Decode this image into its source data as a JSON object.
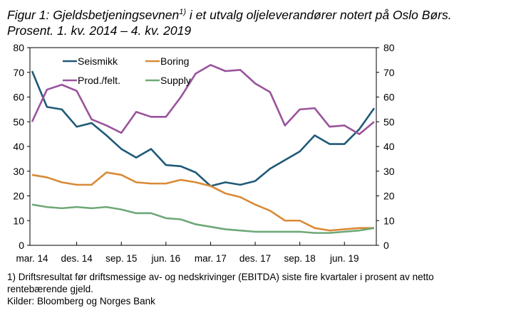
{
  "title_line1_pre": "Figur 1: Gjeldsbetjeningsevnen",
  "title_line1_sup": "1)",
  "title_line1_post": " i et utvalg oljeleverandører notert på Oslo Børs.",
  "title_line2": "Prosent. 1. kv. 2014 – 4. kv. 2019",
  "footnote1": "1) Driftsresultat før driftsmessige av- og nedskrivinger (EBITDA) siste fire kvartaler i prosent av netto",
  "footnote2": "rentebærende gjeld.",
  "source": "Kilder: Bloomberg og Norges Bank",
  "chart_data": {
    "type": "line",
    "x": [
      "1. kv. 2014",
      "2. kv. 2014",
      "3. kv. 2014",
      "4. kv. 2014",
      "1. kv. 2015",
      "2. kv. 2015",
      "3. kv. 2015",
      "4. kv. 2015",
      "1. kv. 2016",
      "2. kv. 2016",
      "3. kv. 2016",
      "4. kv. 2016",
      "1. kv. 2017",
      "2. kv. 2017",
      "3. kv. 2017",
      "4. kv. 2017",
      "1. kv. 2018",
      "2. kv. 2018",
      "3. kv. 2018",
      "4. kv. 2018",
      "1. kv. 2019",
      "2. kv. 2019",
      "3. kv. 2019",
      "4. kv. 2019"
    ],
    "tick_labels": [
      {
        "index": 0,
        "label": "mar. 14"
      },
      {
        "index": 3,
        "label": "des. 14"
      },
      {
        "index": 6,
        "label": "sep. 15"
      },
      {
        "index": 9,
        "label": "jun. 16"
      },
      {
        "index": 12,
        "label": "mar. 17"
      },
      {
        "index": 15,
        "label": "des. 17"
      },
      {
        "index": 18,
        "label": "sep. 18"
      },
      {
        "index": 21,
        "label": "jun. 19"
      }
    ],
    "ylim": [
      0,
      80
    ],
    "yticks": [
      0,
      10,
      20,
      30,
      40,
      50,
      60,
      70,
      80
    ],
    "y_axis_both_sides": true,
    "grid": false,
    "legend": "top-left inside, 2 columns",
    "series": [
      {
        "name": "Seismikk",
        "color": "#1f5a78",
        "values": [
          70.5,
          56,
          55,
          48,
          49.5,
          44.5,
          39,
          35.5,
          39,
          32.5,
          32,
          29.5,
          24,
          25.5,
          24.5,
          26,
          31,
          34.5,
          38,
          44.5,
          41,
          41,
          47,
          55.5
        ]
      },
      {
        "name": "Boring",
        "color": "#d98a36",
        "values": [
          28.5,
          27.5,
          25.5,
          24.5,
          24.5,
          29.5,
          28.5,
          25.5,
          25,
          25,
          26.5,
          25.5,
          24,
          21,
          19.5,
          16.5,
          14,
          10,
          10,
          7,
          6,
          6.5,
          7,
          7
        ]
      },
      {
        "name": "Prod./felt.",
        "color": "#9a539c",
        "values": [
          50,
          63,
          65,
          62.5,
          51,
          48.5,
          45.5,
          54,
          52,
          52,
          60,
          69.5,
          73,
          70.5,
          71,
          65.5,
          62,
          48.5,
          55,
          55.5,
          48,
          48.5,
          45,
          50
        ]
      },
      {
        "name": "Supply",
        "color": "#6ea878",
        "values": [
          16.5,
          15.5,
          15,
          15.5,
          15,
          15.5,
          14.5,
          13,
          13,
          11,
          10.5,
          8.5,
          7.5,
          6.5,
          6,
          5.5,
          5.5,
          5.5,
          5.5,
          5,
          5,
          5.5,
          6,
          7
        ]
      }
    ]
  }
}
